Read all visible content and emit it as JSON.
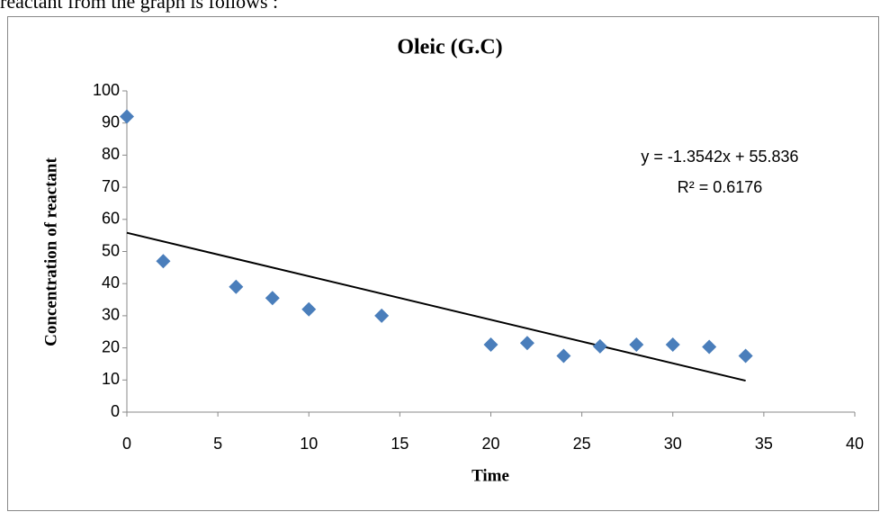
{
  "page_text": "reactant from the graph is follows :",
  "chart_data": {
    "type": "scatter",
    "title": "Oleic (G.C)",
    "x_label": "Time",
    "y_label": "Concentration of reactant",
    "series": [
      {
        "name": "Oleic",
        "color": "#4a7ebb",
        "x": [
          0,
          2,
          6,
          8,
          10,
          14,
          20,
          22,
          24,
          26,
          28,
          30,
          32,
          34
        ],
        "values": [
          92,
          47,
          39,
          35.5,
          32,
          30,
          21,
          21.5,
          17.5,
          20.5,
          21,
          21,
          20.3,
          17.5
        ]
      }
    ],
    "trendline": {
      "slope": -1.3542,
      "intercept": 55.836,
      "x_range": [
        0,
        34
      ],
      "color": "#000000",
      "equation": "y = -1.3542x + 55.836",
      "r_squared": "R² = 0.6176"
    },
    "xlim": [
      0,
      40
    ],
    "xticks": [
      0,
      5,
      10,
      15,
      20,
      25,
      30,
      35,
      40
    ],
    "ylim": [
      0,
      100
    ],
    "yticks": [
      0,
      10,
      20,
      30,
      40,
      50,
      60,
      70,
      80,
      90,
      100
    ],
    "grid": false
  }
}
